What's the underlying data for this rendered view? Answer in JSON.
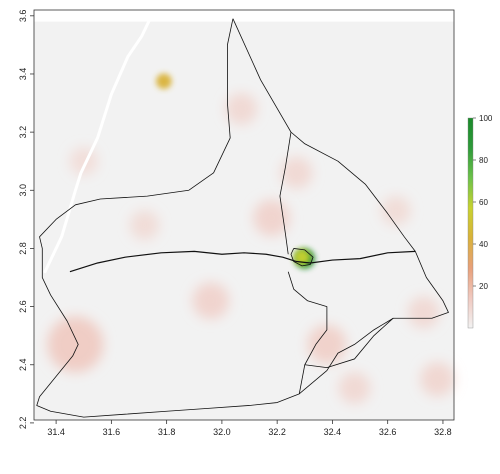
{
  "chart_data": {
    "type": "heatmap",
    "title": "",
    "xlabel": "",
    "ylabel": "",
    "xlim": [
      31.32,
      32.84
    ],
    "ylim": [
      2.21,
      3.62
    ],
    "x_ticks": [
      {
        "value": 31.4,
        "label": "31.4"
      },
      {
        "value": 31.6,
        "label": "31.6"
      },
      {
        "value": 31.8,
        "label": "31.8"
      },
      {
        "value": 32.0,
        "label": "32.0"
      },
      {
        "value": 32.2,
        "label": "32.2"
      },
      {
        "value": 32.4,
        "label": "32.4"
      },
      {
        "value": 32.6,
        "label": "32.6"
      },
      {
        "value": 32.8,
        "label": "32.8"
      }
    ],
    "y_ticks": [
      {
        "value": 2.2,
        "label": "2.2"
      },
      {
        "value": 2.4,
        "label": "2.4"
      },
      {
        "value": 2.6,
        "label": "2.6"
      },
      {
        "value": 2.8,
        "label": "2.8"
      },
      {
        "value": 3.0,
        "label": "3.0"
      },
      {
        "value": 3.2,
        "label": "3.2"
      },
      {
        "value": 3.4,
        "label": "3.4"
      },
      {
        "value": 3.6,
        "label": "3.6"
      }
    ],
    "colorbar": {
      "min": 0,
      "max": 100,
      "ticks": [
        {
          "value": 20,
          "label": "20"
        },
        {
          "value": 40,
          "label": "40"
        },
        {
          "value": 60,
          "label": "60"
        },
        {
          "value": 80,
          "label": "80"
        },
        {
          "value": 100,
          "label": "100"
        }
      ],
      "colors": [
        "#f2f2f2",
        "#f0c9c0",
        "#e8a07a",
        "#d9b23a",
        "#c8d230",
        "#6cc24a",
        "#2e9a3a",
        "#1a8a2a"
      ]
    },
    "raster_extent": {
      "x": [
        31.32,
        32.84
      ],
      "y": [
        2.21,
        3.58
      ]
    },
    "hotspots": [
      {
        "x": 32.3,
        "y": 2.765,
        "value": 100
      },
      {
        "x": 32.29,
        "y": 2.77,
        "value": 55
      },
      {
        "x": 31.79,
        "y": 3.375,
        "value": 45
      },
      {
        "x": 31.47,
        "y": 2.47,
        "value": 30
      },
      {
        "x": 32.18,
        "y": 2.905,
        "value": 14
      },
      {
        "x": 32.38,
        "y": 2.47,
        "value": 16
      },
      {
        "x": 31.96,
        "y": 2.62,
        "value": 14
      },
      {
        "x": 32.07,
        "y": 3.28,
        "value": 10
      },
      {
        "x": 32.27,
        "y": 3.06,
        "value": 10
      },
      {
        "x": 32.63,
        "y": 2.93,
        "value": 8
      },
      {
        "x": 32.73,
        "y": 2.58,
        "value": 10
      },
      {
        "x": 32.78,
        "y": 2.35,
        "value": 12
      },
      {
        "x": 31.72,
        "y": 2.88,
        "value": 8
      },
      {
        "x": 31.5,
        "y": 3.1,
        "value": 7
      },
      {
        "x": 32.48,
        "y": 2.32,
        "value": 10
      }
    ],
    "river": [
      [
        31.36,
        2.72
      ],
      [
        31.42,
        2.84
      ],
      [
        31.47,
        3.0
      ],
      [
        31.49,
        3.06
      ],
      [
        31.55,
        3.18
      ],
      [
        31.6,
        3.33
      ],
      [
        31.66,
        3.46
      ],
      [
        31.71,
        3.53
      ],
      [
        31.74,
        3.59
      ]
    ],
    "boundaries": [
      {
        "name": "outer",
        "points": [
          [
            32.04,
            3.59
          ],
          [
            32.14,
            3.38
          ],
          [
            32.25,
            3.2
          ],
          [
            32.3,
            3.16
          ],
          [
            32.42,
            3.1
          ],
          [
            32.52,
            3.02
          ],
          [
            32.6,
            2.92
          ],
          [
            32.66,
            2.84
          ],
          [
            32.7,
            2.79
          ],
          [
            32.74,
            2.7
          ],
          [
            32.8,
            2.62
          ],
          [
            32.82,
            2.58
          ],
          [
            32.76,
            2.56
          ],
          [
            32.62,
            2.56
          ],
          [
            32.55,
            2.52
          ],
          [
            32.48,
            2.47
          ],
          [
            32.42,
            2.44
          ],
          [
            32.38,
            2.38
          ],
          [
            32.28,
            2.3
          ],
          [
            32.2,
            2.27
          ],
          [
            32.1,
            2.26
          ],
          [
            31.95,
            2.25
          ],
          [
            31.8,
            2.24
          ],
          [
            31.65,
            2.23
          ],
          [
            31.5,
            2.22
          ],
          [
            31.38,
            2.24
          ],
          [
            31.33,
            2.26
          ],
          [
            31.34,
            2.29
          ],
          [
            31.4,
            2.36
          ],
          [
            31.46,
            2.43
          ],
          [
            31.48,
            2.47
          ],
          [
            31.44,
            2.55
          ],
          [
            31.38,
            2.64
          ],
          [
            31.35,
            2.7
          ],
          [
            31.35,
            2.8
          ],
          [
            31.34,
            2.84
          ],
          [
            31.4,
            2.9
          ],
          [
            31.47,
            2.95
          ],
          [
            31.56,
            2.97
          ],
          [
            31.73,
            2.98
          ],
          [
            31.88,
            3.0
          ],
          [
            31.97,
            3.06
          ],
          [
            32.03,
            3.18
          ],
          [
            32.02,
            3.3
          ],
          [
            32.02,
            3.5
          ],
          [
            32.04,
            3.59
          ]
        ]
      },
      {
        "name": "ew-division",
        "points": [
          [
            31.45,
            2.72
          ],
          [
            31.55,
            2.75
          ],
          [
            31.65,
            2.77
          ],
          [
            31.78,
            2.785
          ],
          [
            31.9,
            2.79
          ],
          [
            32.0,
            2.78
          ],
          [
            32.08,
            2.785
          ],
          [
            32.16,
            2.78
          ],
          [
            32.22,
            2.77
          ],
          [
            32.27,
            2.755
          ],
          [
            32.32,
            2.75
          ],
          [
            32.4,
            2.76
          ],
          [
            32.5,
            2.765
          ],
          [
            32.6,
            2.785
          ],
          [
            32.7,
            2.79
          ]
        ]
      },
      {
        "name": "ns-division",
        "points": [
          [
            32.25,
            3.2
          ],
          [
            32.23,
            3.08
          ],
          [
            32.21,
            2.98
          ],
          [
            32.23,
            2.85
          ],
          [
            32.24,
            2.78
          ]
        ]
      },
      {
        "name": "south-division",
        "points": [
          [
            32.24,
            2.72
          ],
          [
            32.26,
            2.66
          ],
          [
            32.31,
            2.62
          ],
          [
            32.38,
            2.6
          ],
          [
            32.38,
            2.52
          ],
          [
            32.34,
            2.47
          ],
          [
            32.3,
            2.4
          ],
          [
            32.28,
            2.3
          ]
        ]
      },
      {
        "name": "town-boundary",
        "points": [
          [
            32.26,
            2.8
          ],
          [
            32.3,
            2.795
          ],
          [
            32.33,
            2.77
          ],
          [
            32.32,
            2.745
          ],
          [
            32.29,
            2.74
          ],
          [
            32.26,
            2.755
          ],
          [
            32.25,
            2.78
          ],
          [
            32.26,
            2.8
          ]
        ]
      },
      {
        "name": "se-division",
        "points": [
          [
            32.3,
            2.4
          ],
          [
            32.38,
            2.39
          ],
          [
            32.48,
            2.42
          ],
          [
            32.55,
            2.5
          ],
          [
            32.62,
            2.56
          ]
        ]
      }
    ]
  }
}
